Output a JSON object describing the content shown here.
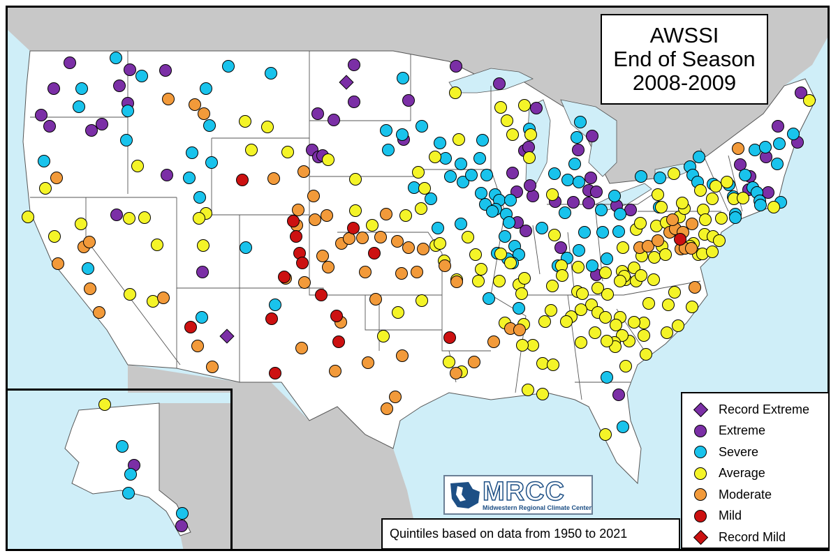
{
  "title": {
    "line1": "AWSSI",
    "line2": "End of Season",
    "line3": "2008-2009"
  },
  "footnote": "Quintiles based on data from 1950 to 2021",
  "logo": {
    "text": "MRCC",
    "subtitle": "Midwestern Regional Climate Center"
  },
  "colors": {
    "record_extreme": "#7b2fa6",
    "extreme": "#7b2fa6",
    "severe": "#19c3ec",
    "average": "#f4f428",
    "moderate": "#f29a3a",
    "mild": "#cc1111",
    "record_mild": "#cc1111",
    "water": "#cfeef8",
    "land": "#ffffff",
    "outside_land": "#c8c8c8"
  },
  "legend": [
    {
      "key": "record_extreme",
      "label": "Record Extreme",
      "shape": "diamond"
    },
    {
      "key": "extreme",
      "label": "Extreme",
      "shape": "circle"
    },
    {
      "key": "severe",
      "label": "Severe",
      "shape": "circle"
    },
    {
      "key": "average",
      "label": "Average",
      "shape": "circle"
    },
    {
      "key": "moderate",
      "label": "Moderate",
      "shape": "circle"
    },
    {
      "key": "mild",
      "label": "Mild",
      "shape": "circle"
    },
    {
      "key": "record_mild",
      "label": "Record Mild",
      "shape": "diamond"
    }
  ]
}
